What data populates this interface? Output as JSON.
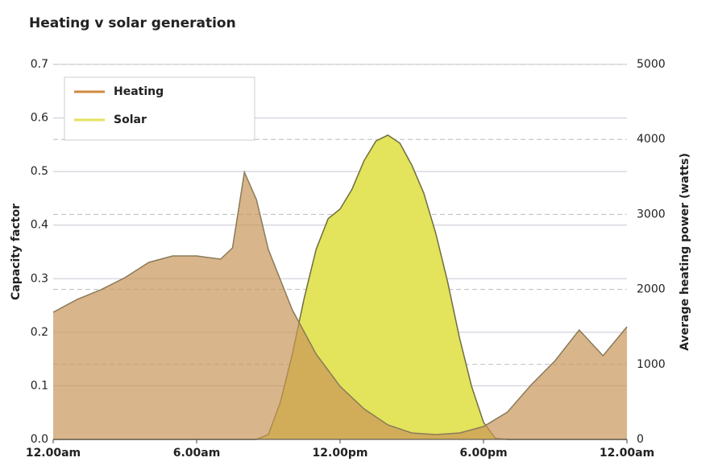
{
  "chart_data": {
    "type": "area",
    "title": "Heating v solar generation",
    "y_label": "Capacity factor",
    "y2_label": "Average heating power (watts)",
    "xlim": [
      0,
      24
    ],
    "xticks": [
      {
        "value": 0,
        "label": "12.00am"
      },
      {
        "value": 6,
        "label": "6.00am"
      },
      {
        "value": 12,
        "label": "12.00pm"
      },
      {
        "value": 18,
        "label": "6.00pm"
      },
      {
        "value": 24,
        "label": "12.00am"
      }
    ],
    "ylim": [
      0,
      0.7
    ],
    "yticks": [
      {
        "value": 0,
        "label": "0.0"
      },
      0.1,
      0.2,
      0.3,
      0.4,
      0.5,
      0.6,
      0.7
    ],
    "y2lim": [
      0,
      5000
    ],
    "y2ticks": [
      0,
      1000,
      2000,
      3000,
      4000,
      5000
    ],
    "grid": true,
    "legend": "top-left",
    "series": [
      {
        "name": "Solar",
        "color": "#e3e35c",
        "axis": "y",
        "x": [
          0,
          8.5,
          9,
          9.5,
          10,
          10.5,
          11,
          11.5,
          12,
          12.5,
          13,
          13.5,
          14,
          14.5,
          15,
          15.5,
          16,
          16.5,
          17,
          17.5,
          18,
          18.5,
          19,
          24
        ],
        "values": [
          0,
          0,
          0.009,
          0.069,
          0.159,
          0.264,
          0.355,
          0.412,
          0.43,
          0.467,
          0.52,
          0.557,
          0.568,
          0.553,
          0.512,
          0.46,
          0.385,
          0.294,
          0.189,
          0.099,
          0.032,
          0.002,
          0,
          0
        ]
      },
      {
        "name": "Heating",
        "color": "#d08a40",
        "axis": "y2",
        "x": [
          0,
          1,
          2,
          3,
          4,
          5,
          6,
          7,
          7.5,
          8,
          8.5,
          9,
          10,
          11,
          12,
          13,
          14,
          15,
          16,
          17,
          18,
          19,
          20,
          21,
          22,
          23,
          24
        ],
        "values": [
          1695,
          1867,
          1996,
          2157,
          2360,
          2446,
          2446,
          2403,
          2554,
          3562,
          3197,
          2532,
          1727,
          1137,
          708,
          408,
          193,
          86,
          64,
          86,
          172,
          365,
          730,
          1052,
          1459,
          1116,
          1502
        ]
      }
    ]
  }
}
